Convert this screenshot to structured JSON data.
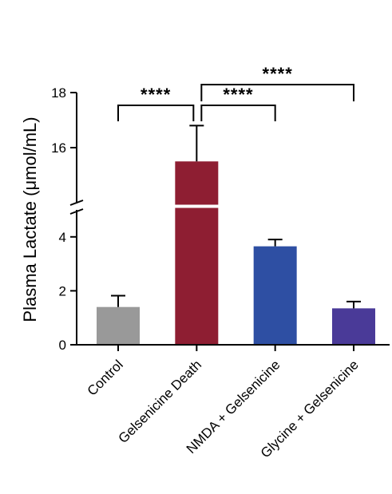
{
  "chart_data": {
    "type": "bar",
    "ylabel": "Plasma Lactate (μmol/mL)",
    "categories": [
      "Control",
      "Gelsenicine Death",
      "NMDA + Gelsenicine",
      "Glycine + Gelsenicine"
    ],
    "values": [
      1.4,
      15.5,
      3.65,
      1.35
    ],
    "errors": [
      0.42,
      1.3,
      0.25,
      0.25
    ],
    "colors": [
      "#999999",
      "#8e1e32",
      "#2e4fa3",
      "#4a3a98"
    ],
    "y_axis_break": {
      "lower_range": [
        0,
        5
      ],
      "upper_range": [
        14,
        18
      ]
    },
    "y_ticks_lower": [
      0,
      2,
      4
    ],
    "y_ticks_upper": [
      16,
      18
    ],
    "tick_labels_lower": [
      "0",
      "2",
      "4"
    ],
    "tick_labels_upper": [
      "16",
      "18"
    ],
    "grid": false,
    "significance": [
      {
        "from": 0,
        "to": 1,
        "label": "****"
      },
      {
        "from": 1,
        "to": 2,
        "label": "****"
      },
      {
        "from": 1,
        "to": 3,
        "label": "****"
      }
    ]
  }
}
